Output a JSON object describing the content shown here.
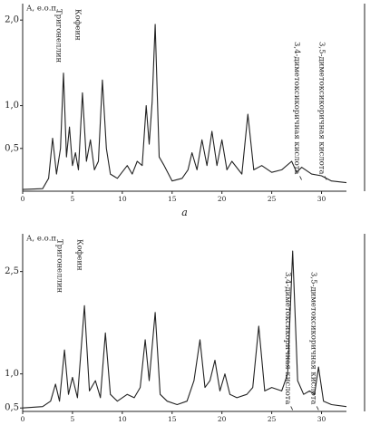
{
  "chart_data": [
    {
      "type": "line",
      "ylabel": "А, е.о.п.",
      "caption": "а",
      "xlim": [
        0,
        32.5
      ],
      "xticks": [
        0,
        5,
        10,
        15,
        20,
        25,
        30
      ],
      "ylim": [
        0,
        2.15
      ],
      "yticks": [
        {
          "value": 0.5,
          "label": "0,5"
        },
        {
          "value": 1,
          "label": "1,0"
        },
        {
          "value": 2,
          "label": "2,0"
        }
      ],
      "color": "#222222",
      "x": [
        0,
        2,
        2.6,
        3.0,
        3.4,
        3.8,
        4.1,
        4.4,
        4.7,
        5.0,
        5.3,
        5.6,
        6.0,
        6.4,
        6.8,
        7.2,
        7.6,
        8.0,
        8.4,
        8.8,
        9.5,
        10.5,
        11.0,
        11.5,
        12.0,
        12.4,
        12.7,
        13.0,
        13.3,
        13.7,
        14.2,
        15,
        16,
        16.6,
        17.0,
        17.5,
        18.0,
        18.5,
        19.0,
        19.5,
        20.0,
        20.5,
        21.0,
        22.0,
        22.6,
        23.2,
        24.0,
        25.0,
        26.0,
        27.0,
        27.5,
        28.0,
        29.0,
        30.0,
        31.0,
        32.5
      ],
      "values": [
        0.02,
        0.03,
        0.15,
        0.62,
        0.2,
        0.5,
        1.38,
        0.4,
        0.75,
        0.3,
        0.45,
        0.25,
        1.15,
        0.35,
        0.6,
        0.25,
        0.35,
        1.3,
        0.5,
        0.2,
        0.15,
        0.3,
        0.2,
        0.35,
        0.3,
        1.0,
        0.55,
        1.05,
        1.95,
        0.4,
        0.3,
        0.12,
        0.15,
        0.25,
        0.45,
        0.25,
        0.6,
        0.3,
        0.7,
        0.3,
        0.6,
        0.25,
        0.35,
        0.2,
        0.9,
        0.25,
        0.3,
        0.22,
        0.25,
        0.35,
        0.22,
        0.28,
        0.2,
        0.18,
        0.12,
        0.1
      ],
      "annotations": [
        {
          "text": "Тригонеллин",
          "x": 4.1
        },
        {
          "text": "Кофеин",
          "x": 6.0
        },
        {
          "text": "3,4-диметоксикоричная кислота",
          "x": 28.0
        },
        {
          "text": "3,5-диметоксикоричная кислота",
          "x": 30.5
        }
      ]
    },
    {
      "type": "line",
      "ylabel": "А, е.о.п.",
      "xlim": [
        0,
        32.5
      ],
      "xticks": [
        0,
        5,
        10,
        15,
        20,
        25,
        30
      ],
      "ylim": [
        0.45,
        3.0
      ],
      "yticks": [
        {
          "value": 0.5,
          "label": "0,5"
        },
        {
          "value": 1,
          "label": "1,0"
        },
        {
          "value": 2.5,
          "label": "2,5"
        }
      ],
      "color": "#222222",
      "x": [
        0,
        2,
        2.8,
        3.3,
        3.7,
        4.2,
        4.6,
        5.0,
        5.5,
        6.2,
        6.7,
        7.3,
        7.8,
        8.3,
        8.8,
        9.5,
        10.5,
        11.2,
        11.8,
        12.3,
        12.7,
        13.3,
        13.8,
        14.5,
        15.5,
        16.5,
        17.2,
        17.8,
        18.3,
        18.8,
        19.3,
        19.8,
        20.3,
        20.8,
        21.5,
        22.5,
        23.1,
        23.7,
        24.3,
        25.0,
        26.0,
        26.6,
        27.1,
        27.6,
        28.2,
        28.8,
        29.3,
        29.7,
        30.2,
        31.0,
        32.5
      ],
      "values": [
        0.5,
        0.52,
        0.6,
        0.85,
        0.6,
        1.35,
        0.7,
        0.95,
        0.65,
        2.0,
        0.75,
        0.9,
        0.65,
        1.6,
        0.7,
        0.6,
        0.7,
        0.65,
        0.8,
        1.5,
        0.9,
        1.9,
        0.7,
        0.6,
        0.55,
        0.6,
        0.9,
        1.5,
        0.8,
        0.9,
        1.2,
        0.75,
        1.0,
        0.7,
        0.65,
        0.7,
        0.8,
        1.7,
        0.75,
        0.8,
        0.75,
        1.0,
        2.8,
        0.9,
        0.7,
        0.75,
        0.7,
        1.1,
        0.6,
        0.55,
        0.52
      ],
      "annotations": [
        {
          "text": "Тригонеллин",
          "x": 4.2
        },
        {
          "text": "Кофеин",
          "x": 6.2
        },
        {
          "text": "3,4-диметоксикоричная кислота",
          "x": 27.1
        },
        {
          "text": "3,5-диметоксикоричная кислота",
          "x": 29.7
        }
      ]
    }
  ]
}
